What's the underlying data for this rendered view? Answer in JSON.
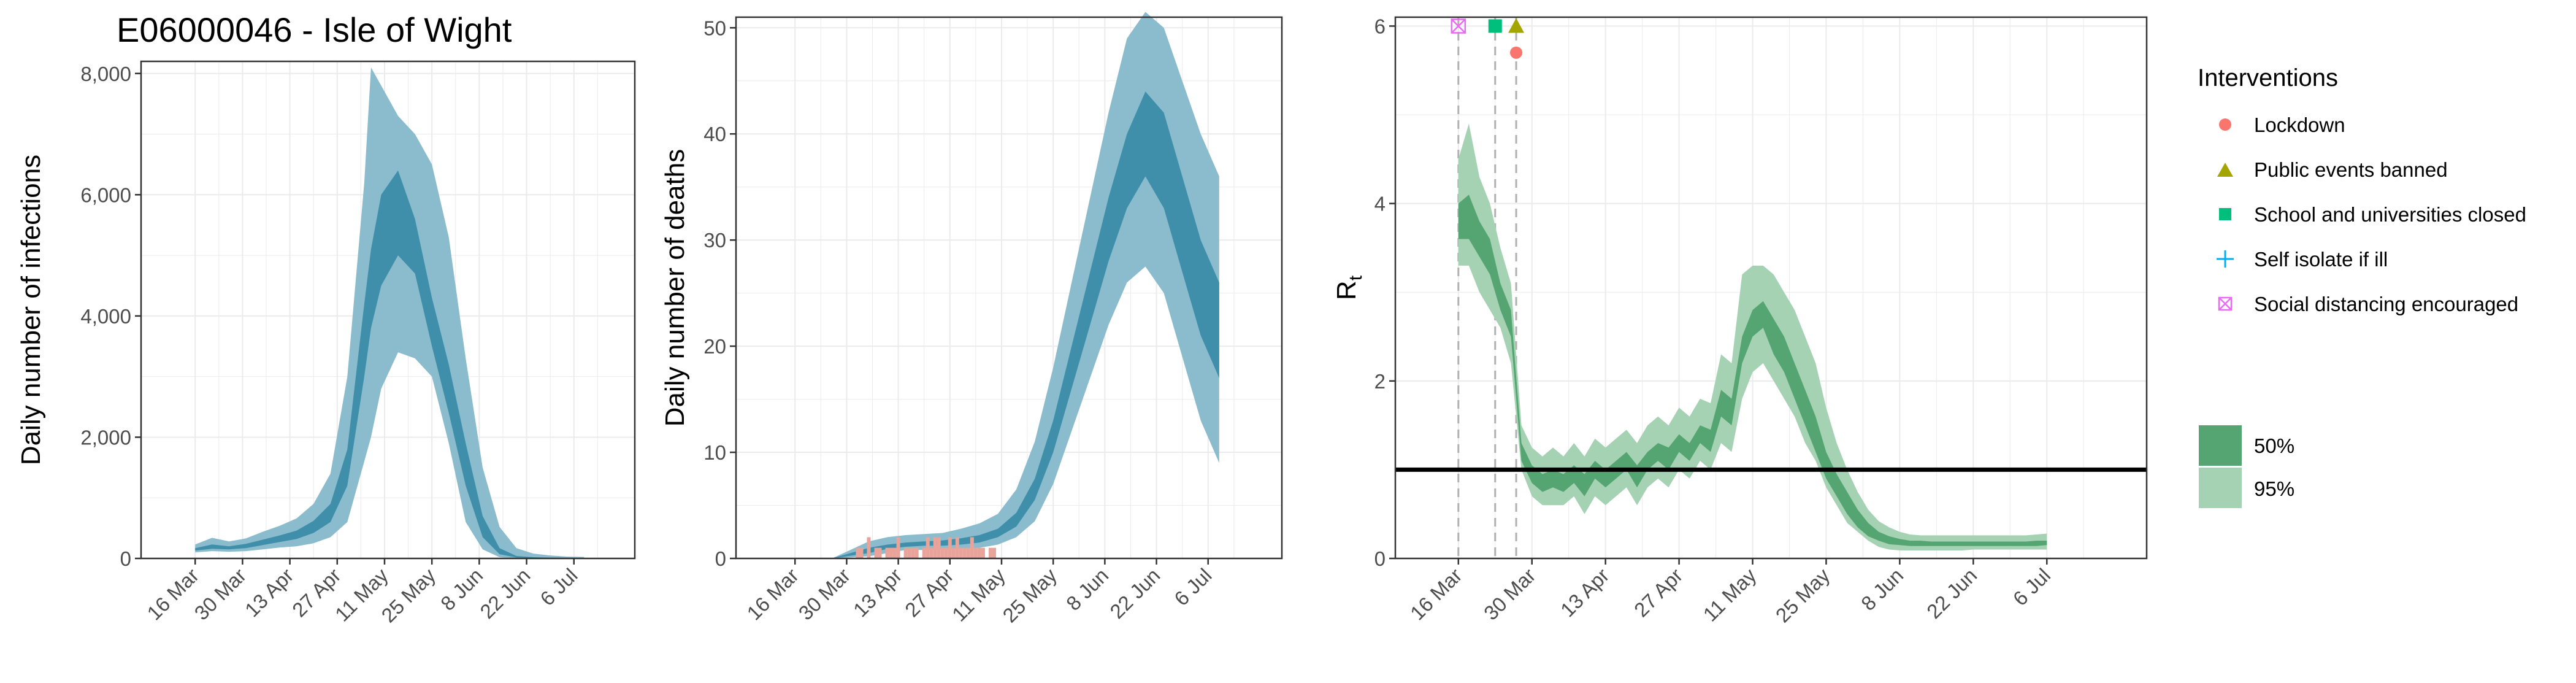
{
  "title": "E06000046 - Isle of Wight",
  "colors": {
    "blue_95": "#8bbccd",
    "blue_50": "#3f8fab",
    "green_95": "#a6d2b4",
    "green_50": "#55a572",
    "deaths_bar": "#e8a39a",
    "grid": "#ebebeb",
    "lockdown": "#f8766d",
    "public_events": "#a3a500",
    "schools": "#00bf7d",
    "self_isolate": "#00b0f6",
    "social_distancing": "#e76bf3"
  },
  "chart_data": [
    {
      "type": "area",
      "name": "infections",
      "ylabel": "Daily number of infections",
      "x_tick_labels": [
        "16 Mar",
        "30 Mar",
        "13 Apr",
        "27 Apr",
        "11 May",
        "25 May",
        "8 Jun",
        "22 Jun",
        "6 Jul"
      ],
      "y_tick_labels": [
        "0",
        "2,000",
        "4,000",
        "6,000",
        "8,000"
      ],
      "y_ticks": [
        0,
        2000,
        4000,
        6000,
        8000
      ],
      "ylim": [
        0,
        8200
      ],
      "grid": true,
      "x_day": [
        0,
        5,
        10,
        15,
        20,
        25,
        30,
        35,
        40,
        45,
        50,
        52,
        55,
        60,
        65,
        70,
        75,
        80,
        85,
        90,
        95,
        100,
        105,
        110,
        115
      ],
      "lower95": [
        100,
        120,
        110,
        120,
        150,
        180,
        200,
        250,
        350,
        600,
        1600,
        2000,
        2800,
        3400,
        3300,
        3000,
        1900,
        600,
        150,
        20,
        5,
        3,
        2,
        2,
        2
      ],
      "lower50": [
        130,
        160,
        150,
        170,
        220,
        270,
        320,
        420,
        600,
        1200,
        3000,
        3800,
        4500,
        5000,
        4700,
        3500,
        2400,
        1200,
        350,
        70,
        15,
        8,
        5,
        4,
        4
      ],
      "upper50": [
        170,
        230,
        200,
        240,
        310,
        380,
        460,
        620,
        900,
        1800,
        4200,
        5100,
        6000,
        6400,
        5600,
        4300,
        3200,
        1900,
        700,
        170,
        40,
        20,
        12,
        10,
        10
      ],
      "upper95": [
        230,
        340,
        280,
        330,
        440,
        540,
        660,
        900,
        1400,
        3000,
        6200,
        8100,
        7800,
        7300,
        7000,
        6500,
        5300,
        3300,
        1500,
        520,
        170,
        80,
        50,
        30,
        25
      ]
    },
    {
      "type": "area",
      "name": "deaths",
      "ylabel": "Daily number of deaths",
      "x_tick_labels": [
        "16 Mar",
        "30 Mar",
        "13 Apr",
        "27 Apr",
        "11 May",
        "25 May",
        "8 Jun",
        "22 Jun",
        "6 Jul"
      ],
      "y_tick_labels": [
        "0",
        "10",
        "20",
        "30",
        "40",
        "50"
      ],
      "y_ticks": [
        0,
        10,
        20,
        30,
        40,
        50
      ],
      "ylim": [
        0,
        51
      ],
      "grid": true,
      "x_day": [
        0,
        10,
        20,
        25,
        30,
        35,
        40,
        45,
        50,
        55,
        60,
        65,
        70,
        75,
        80,
        85,
        90,
        95,
        100,
        105,
        110,
        115
      ],
      "lower95": [
        0,
        0,
        0.2,
        0.5,
        0.8,
        0.8,
        0.8,
        0.9,
        1.0,
        1.3,
        2,
        3.5,
        7,
        12,
        17,
        22,
        26,
        27.5,
        25,
        19,
        13,
        9
      ],
      "lower50": [
        0,
        0,
        0.5,
        0.9,
        1.1,
        1.2,
        1.2,
        1.3,
        1.5,
        2.0,
        3,
        5.5,
        10,
        16,
        22,
        28,
        33,
        36,
        33,
        27,
        21,
        17
      ],
      "upper50": [
        0,
        0,
        1.0,
        1.3,
        1.5,
        1.6,
        1.7,
        1.9,
        2.2,
        2.8,
        4.3,
        7.5,
        13,
        20,
        27,
        34,
        40,
        44,
        42,
        36,
        30,
        26
      ],
      "upper95": [
        0,
        0,
        1.6,
        2.0,
        2.2,
        2.3,
        2.4,
        2.8,
        3.3,
        4.2,
        6.5,
        11,
        18,
        26,
        34,
        42,
        49,
        51.5,
        50,
        45,
        40,
        36
      ],
      "observed_day": [
        17,
        18,
        19,
        20,
        21,
        22,
        23,
        24,
        25,
        26,
        27,
        28,
        29,
        30,
        31,
        32,
        33,
        34,
        35,
        36,
        37,
        38,
        39,
        40,
        41,
        42,
        43,
        44,
        45,
        46,
        47,
        48,
        49,
        50,
        51,
        52,
        53,
        54
      ],
      "observed_deaths": [
        1,
        1,
        0,
        2,
        0,
        1,
        1,
        0,
        1,
        1,
        1,
        2,
        0,
        1,
        1,
        1,
        1,
        0,
        1,
        2,
        1,
        2,
        2,
        1,
        1,
        2,
        1,
        2,
        1,
        1,
        1,
        2,
        1,
        1,
        1,
        0,
        1,
        1
      ]
    },
    {
      "type": "area",
      "name": "rt",
      "ylabel": "R",
      "ylabel_sub": "t",
      "x_tick_labels": [
        "16 Mar",
        "30 Mar",
        "13 Apr",
        "27 Apr",
        "11 May",
        "25 May",
        "8 Jun",
        "22 Jun",
        "6 Jul"
      ],
      "y_tick_labels": [
        "0",
        "2",
        "4",
        "6"
      ],
      "y_ticks": [
        0,
        2,
        4,
        6
      ],
      "ylim": [
        0,
        6.1
      ],
      "reference_line": 1,
      "grid": true,
      "x_day": [
        0,
        2,
        4,
        6,
        8,
        10,
        12,
        14,
        16,
        18,
        20,
        22,
        24,
        26,
        28,
        30,
        32,
        34,
        36,
        38,
        40,
        42,
        44,
        46,
        48,
        50,
        52,
        54,
        56,
        58,
        60,
        62,
        64,
        66,
        68,
        70,
        72,
        74,
        76,
        78,
        80,
        82,
        84,
        86,
        88,
        90,
        92,
        94,
        96,
        98,
        100,
        102,
        104,
        106,
        108,
        110,
        112
      ],
      "lower95": [
        3.3,
        3.3,
        3.0,
        2.8,
        2.6,
        2.2,
        1.0,
        0.7,
        0.6,
        0.6,
        0.6,
        0.7,
        0.5,
        0.7,
        0.6,
        0.7,
        0.8,
        0.6,
        0.8,
        0.9,
        0.8,
        1.0,
        0.9,
        1.1,
        1.0,
        1.3,
        1.2,
        1.8,
        2.1,
        2.2,
        2.0,
        1.8,
        1.6,
        1.3,
        1.1,
        0.8,
        0.6,
        0.4,
        0.3,
        0.2,
        0.13,
        0.1,
        0.09,
        0.09,
        0.09,
        0.09,
        0.09,
        0.09,
        0.09,
        0.1,
        0.1,
        0.1,
        0.1,
        0.1,
        0.1,
        0.1,
        0.1
      ],
      "lower50": [
        3.6,
        3.6,
        3.4,
        3.2,
        2.8,
        2.5,
        1.1,
        0.85,
        0.75,
        0.8,
        0.75,
        0.85,
        0.7,
        0.9,
        0.8,
        0.9,
        1.0,
        0.8,
        1.0,
        1.1,
        1.0,
        1.2,
        1.1,
        1.3,
        1.2,
        1.6,
        1.5,
        2.2,
        2.5,
        2.6,
        2.3,
        2.1,
        1.8,
        1.5,
        1.2,
        0.9,
        0.7,
        0.5,
        0.35,
        0.25,
        0.2,
        0.16,
        0.15,
        0.14,
        0.14,
        0.14,
        0.14,
        0.14,
        0.14,
        0.14,
        0.14,
        0.14,
        0.14,
        0.14,
        0.14,
        0.14,
        0.15
      ],
      "upper50": [
        4.0,
        4.1,
        3.8,
        3.6,
        3.1,
        2.8,
        1.3,
        1.05,
        0.95,
        1.0,
        0.95,
        1.05,
        0.95,
        1.1,
        1.0,
        1.1,
        1.2,
        1.05,
        1.2,
        1.3,
        1.25,
        1.4,
        1.3,
        1.5,
        1.45,
        1.9,
        1.8,
        2.5,
        2.8,
        2.9,
        2.7,
        2.5,
        2.2,
        1.9,
        1.6,
        1.2,
        0.95,
        0.75,
        0.55,
        0.4,
        0.3,
        0.25,
        0.22,
        0.2,
        0.2,
        0.19,
        0.19,
        0.19,
        0.19,
        0.19,
        0.19,
        0.19,
        0.19,
        0.19,
        0.19,
        0.2,
        0.2
      ],
      "upper95": [
        4.5,
        4.9,
        4.3,
        4.0,
        3.5,
        3.1,
        1.5,
        1.25,
        1.15,
        1.25,
        1.15,
        1.3,
        1.15,
        1.35,
        1.25,
        1.35,
        1.45,
        1.3,
        1.5,
        1.6,
        1.5,
        1.7,
        1.6,
        1.8,
        1.75,
        2.3,
        2.2,
        3.2,
        3.3,
        3.3,
        3.2,
        3.0,
        2.8,
        2.5,
        2.2,
        1.7,
        1.3,
        1.0,
        0.75,
        0.55,
        0.42,
        0.35,
        0.3,
        0.27,
        0.26,
        0.26,
        0.26,
        0.26,
        0.26,
        0.26,
        0.26,
        0.26,
        0.26,
        0.26,
        0.26,
        0.27,
        0.28
      ],
      "interventions": [
        {
          "name": "Social distancing encouraged",
          "day": 0,
          "value": 6.0,
          "shape": "boxx",
          "color": "#e76bf3"
        },
        {
          "name": "School and universities closed",
          "day": 7,
          "value": 6.0,
          "shape": "square",
          "color": "#00bf7d"
        },
        {
          "name": "Public events banned",
          "day": 11,
          "value": 6.0,
          "shape": "triangle",
          "color": "#a3a500"
        },
        {
          "name": "Lockdown",
          "day": 11,
          "value": 5.7,
          "shape": "circle",
          "color": "#f8766d"
        }
      ]
    }
  ],
  "legend": {
    "title": "Interventions",
    "items": [
      {
        "label": "Lockdown",
        "shape": "circle",
        "color": "#f8766d"
      },
      {
        "label": "Public events banned",
        "shape": "triangle",
        "color": "#a3a500"
      },
      {
        "label": "School and universities closed",
        "shape": "square",
        "color": "#00bf7d"
      },
      {
        "label": "Self isolate if ill",
        "shape": "plus",
        "color": "#00b0f6"
      },
      {
        "label": "Social distancing encouraged",
        "shape": "boxx",
        "color": "#e76bf3"
      }
    ],
    "bands": [
      {
        "label": "50%",
        "color": "#55a572"
      },
      {
        "label": "95%",
        "color": "#a6d2b4"
      }
    ]
  }
}
